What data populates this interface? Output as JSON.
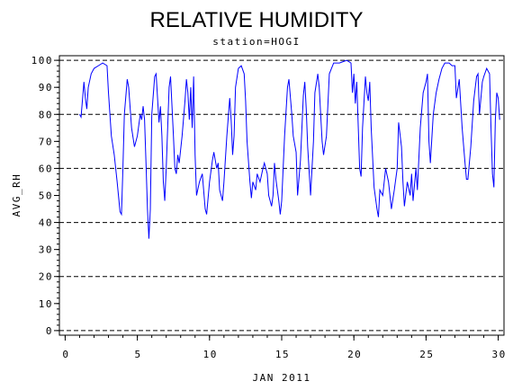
{
  "chart_data": {
    "type": "line",
    "title": "RELATIVE HUMIDITY",
    "subtitle": "station=HOGI",
    "x_label": "JAN 2011",
    "y_label": "AVG_RH",
    "xlim": [
      -0.4,
      30.4
    ],
    "ylim": [
      -1.7,
      101.7
    ],
    "xticks": [
      0,
      5,
      10,
      15,
      20,
      25,
      30
    ],
    "yticks": [
      0,
      10,
      20,
      30,
      40,
      50,
      60,
      70,
      80,
      90,
      100
    ],
    "ygrid": [
      0,
      20,
      40,
      60,
      80,
      100
    ],
    "xminor_step": 1,
    "yminor_step": 2,
    "series": [
      {
        "name": "AVG_RH",
        "color": "#0000ff",
        "x": [
          1.0,
          1.1,
          1.3,
          1.4,
          1.5,
          1.6,
          1.8,
          2.0,
          2.3,
          2.6,
          2.9,
          3.0,
          3.2,
          3.4,
          3.6,
          3.8,
          3.9,
          4.0,
          4.1,
          4.3,
          4.4,
          4.6,
          4.8,
          5.0,
          5.2,
          5.3,
          5.4,
          5.5,
          5.6,
          5.7,
          5.8,
          5.9,
          6.0,
          6.2,
          6.3,
          6.5,
          6.6,
          6.7,
          6.8,
          6.9,
          7.0,
          7.2,
          7.3,
          7.5,
          7.6,
          7.7,
          7.8,
          7.9,
          8.1,
          8.3,
          8.4,
          8.5,
          8.6,
          8.7,
          8.8,
          8.9,
          9.0,
          9.1,
          9.3,
          9.5,
          9.7,
          9.8,
          10.0,
          10.2,
          10.3,
          10.5,
          10.6,
          10.7,
          10.9,
          11.0,
          11.2,
          11.4,
          11.5,
          11.6,
          11.7,
          11.8,
          12.0,
          12.2,
          12.4,
          12.5,
          12.6,
          12.8,
          12.9,
          13.0,
          13.2,
          13.3,
          13.5,
          13.7,
          13.8,
          14.0,
          14.1,
          14.3,
          14.4,
          14.5,
          14.6,
          14.8,
          14.9,
          15.0,
          15.2,
          15.4,
          15.5,
          15.7,
          15.8,
          16.0,
          16.1,
          16.3,
          16.5,
          16.6,
          16.7,
          16.8,
          17.0,
          17.2,
          17.3,
          17.5,
          17.6,
          17.8,
          17.9,
          18.1,
          18.3,
          18.6,
          19.0,
          19.5,
          19.8,
          19.9,
          20.0,
          20.1,
          20.2,
          20.4,
          20.5,
          20.6,
          20.8,
          20.9,
          21.0,
          21.1,
          21.2,
          21.4,
          21.6,
          21.7,
          21.8,
          22.0,
          22.2,
          22.4,
          22.6,
          22.8,
          23.0,
          23.1,
          23.3,
          23.4,
          23.5,
          23.7,
          23.9,
          24.0,
          24.1,
          24.3,
          24.4,
          24.6,
          24.8,
          25.0,
          25.1,
          25.2,
          25.3,
          25.5,
          25.7,
          25.9,
          26.1,
          26.3,
          26.6,
          26.8,
          27.0,
          27.1,
          27.3,
          27.5,
          27.7,
          27.8,
          27.9,
          28.1,
          28.3,
          28.5,
          28.6,
          28.7,
          28.9,
          29.0,
          29.2,
          29.4,
          29.5,
          29.6,
          29.7,
          29.8,
          29.9,
          30.0,
          30.1
        ],
        "values": [
          80,
          79,
          92,
          86,
          82,
          90,
          95,
          97,
          98,
          99,
          98,
          88,
          72,
          65,
          55,
          44,
          43,
          60,
          80,
          93,
          90,
          75,
          68,
          72,
          80,
          78,
          83,
          78,
          62,
          45,
          34,
          45,
          80,
          94,
          95,
          77,
          83,
          72,
          55,
          48,
          60,
          90,
          94,
          72,
          60,
          58,
          65,
          62,
          72,
          85,
          93,
          88,
          78,
          90,
          75,
          94,
          65,
          50,
          55,
          58,
          45,
          43,
          55,
          63,
          66,
          60,
          62,
          52,
          48,
          55,
          72,
          86,
          78,
          65,
          72,
          90,
          97,
          98,
          95,
          85,
          70,
          55,
          49,
          55,
          52,
          58,
          55,
          60,
          62,
          58,
          50,
          46,
          50,
          62,
          56,
          48,
          43,
          48,
          72,
          90,
          93,
          80,
          72,
          66,
          50,
          63,
          87,
          92,
          82,
          68,
          50,
          70,
          88,
          95,
          90,
          70,
          65,
          72,
          95,
          99,
          99,
          100,
          99,
          88,
          95,
          84,
          92,
          60,
          57,
          75,
          94,
          88,
          85,
          92,
          75,
          53,
          45,
          42,
          52,
          50,
          60,
          55,
          45,
          52,
          60,
          77,
          68,
          55,
          46,
          55,
          50,
          58,
          48,
          60,
          52,
          75,
          88,
          92,
          95,
          70,
          62,
          80,
          88,
          93,
          97,
          99,
          99,
          98,
          98,
          86,
          93,
          75,
          62,
          56,
          56,
          68,
          85,
          94,
          95,
          80,
          92,
          94,
          97,
          95,
          75,
          58,
          53,
          78,
          88,
          86,
          78
        ]
      }
    ]
  }
}
